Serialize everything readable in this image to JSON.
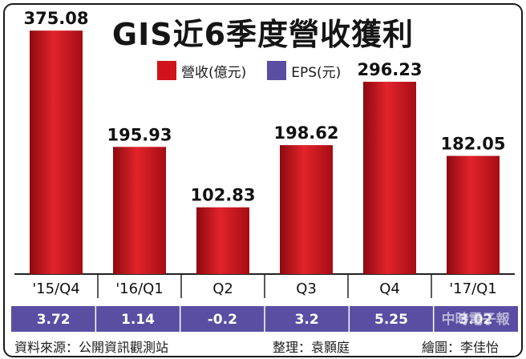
{
  "title": "GIS近6季度營收獲利",
  "legend": [
    {
      "label": "營收(億元)",
      "color": "#d0121b"
    },
    {
      "label": "EPS(元)",
      "color": "#5a4ea3"
    }
  ],
  "chart_data": {
    "type": "bar",
    "categories": [
      "'15/Q4",
      "'16/Q1",
      "Q2",
      "Q3",
      "Q4",
      "'17/Q1"
    ],
    "series": [
      {
        "name": "營收(億元)",
        "values": [
          375.08,
          195.93,
          102.83,
          198.62,
          296.23,
          182.05
        ],
        "labels": [
          "375.08",
          "195.93",
          "102.83",
          "198.62",
          "296.23",
          "182.05"
        ]
      },
      {
        "name": "EPS(元)",
        "values": [
          3.72,
          1.14,
          -0.2,
          3.2,
          5.25,
          3.02
        ],
        "labels": [
          "3.72",
          "1.14",
          "-0.2",
          "3.2",
          "5.25",
          "3.02"
        ]
      }
    ],
    "ylim": [
      0,
      400
    ],
    "grid": false,
    "legend_position": "top"
  },
  "footer": {
    "source": "資料來源：公開資訊觀測站",
    "editor": "整理：袁顥庭",
    "artist": "繪圖：李佳怡"
  },
  "watermark": "中時電子報"
}
